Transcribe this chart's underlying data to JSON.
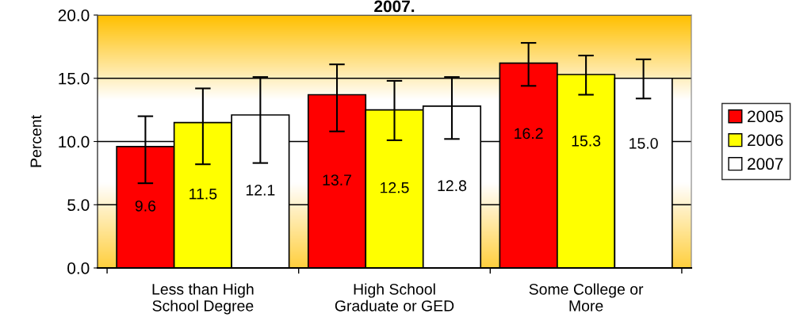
{
  "chart_data": {
    "type": "bar",
    "title": "2007.",
    "ylabel": "Percent",
    "categories": [
      "Less than High\nSchool Degree",
      "High School\nGraduate or GED",
      "Some College or\nMore"
    ],
    "series": [
      {
        "name": "2005",
        "color": "#ff0000",
        "values": [
          9.6,
          13.7,
          16.2
        ],
        "value_labels": [
          "9.6",
          "13.7",
          "16.2"
        ],
        "errors": [
          [
            6.7,
            12.0
          ],
          [
            10.8,
            16.1
          ],
          [
            14.4,
            17.8
          ]
        ]
      },
      {
        "name": "2006",
        "color": "#ffff00",
        "values": [
          11.5,
          12.5,
          15.3
        ],
        "value_labels": [
          "11.5",
          "12.5",
          "15.3"
        ],
        "errors": [
          [
            8.2,
            14.2
          ],
          [
            10.1,
            14.8
          ],
          [
            13.7,
            16.8
          ]
        ]
      },
      {
        "name": "2007",
        "color": "#ffffff",
        "values": [
          12.1,
          12.8,
          15.0
        ],
        "value_labels": [
          "12.1",
          "12.8",
          "15.0"
        ],
        "errors": [
          [
            8.3,
            15.1
          ],
          [
            10.2,
            15.1
          ],
          [
            13.4,
            16.5
          ]
        ]
      }
    ],
    "ylim": [
      0,
      20
    ],
    "yticks": [
      {
        "value": 0,
        "label": "0.0"
      },
      {
        "value": 5,
        "label": "5.0"
      },
      {
        "value": 10,
        "label": "10.0"
      },
      {
        "value": 15,
        "label": "15.0"
      },
      {
        "value": 20,
        "label": "20.0"
      }
    ],
    "grid": "y",
    "legend": "right"
  }
}
